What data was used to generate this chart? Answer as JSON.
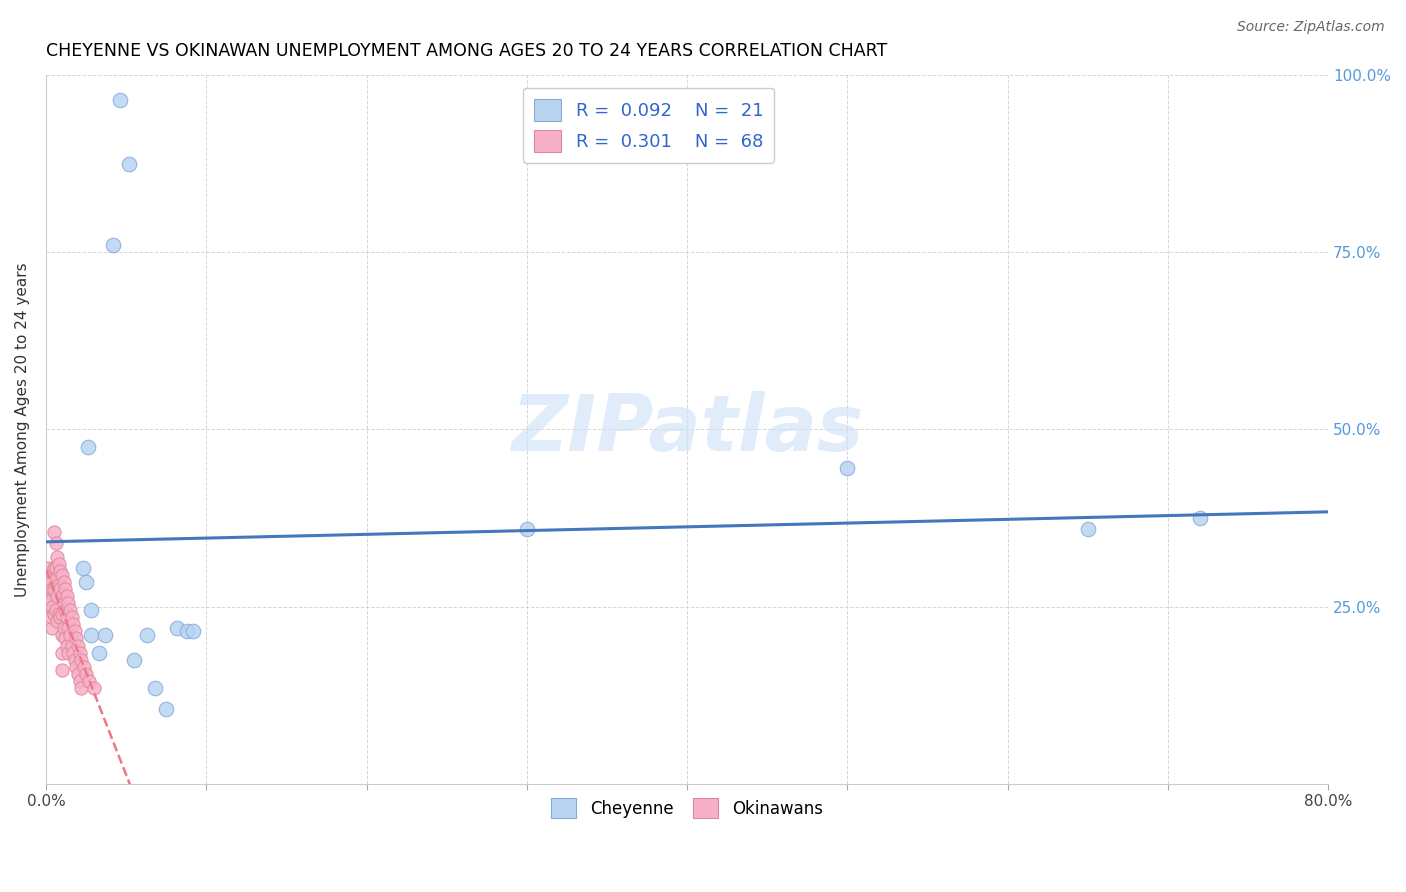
{
  "title": "CHEYENNE VS OKINAWAN UNEMPLOYMENT AMONG AGES 20 TO 24 YEARS CORRELATION CHART",
  "source": "Source: ZipAtlas.com",
  "ylabel": "Unemployment Among Ages 20 to 24 years",
  "xlim": [
    0.0,
    0.8
  ],
  "ylim": [
    0.0,
    1.0
  ],
  "xtick_positions": [
    0.0,
    0.1,
    0.2,
    0.3,
    0.4,
    0.5,
    0.6,
    0.7,
    0.8
  ],
  "ytick_positions": [
    0.0,
    0.25,
    0.5,
    0.75,
    1.0
  ],
  "xtick_labels": [
    "0.0%",
    "",
    "",
    "",
    "",
    "",
    "",
    "",
    "80.0%"
  ],
  "ytick_labels_right": [
    "",
    "25.0%",
    "50.0%",
    "75.0%",
    "100.0%"
  ],
  "cheyenne_color": "#b8d4f0",
  "cheyenne_edge": "#88aadd",
  "okinawan_color": "#f8b0c8",
  "okinawan_edge": "#dd8899",
  "trend_blue": "#4477bb",
  "trend_pink": "#ee7788",
  "legend_R_cheyenne": "0.092",
  "legend_N_cheyenne": "21",
  "legend_R_okinawan": "0.301",
  "legend_N_okinawan": "68",
  "cheyenne_x": [
    0.023,
    0.025,
    0.026,
    0.028,
    0.028,
    0.033,
    0.037,
    0.042,
    0.046,
    0.052,
    0.055,
    0.063,
    0.068,
    0.075,
    0.082,
    0.088,
    0.092,
    0.3,
    0.5,
    0.65,
    0.72
  ],
  "cheyenne_y": [
    0.305,
    0.285,
    0.475,
    0.21,
    0.245,
    0.185,
    0.21,
    0.76,
    0.965,
    0.875,
    0.175,
    0.21,
    0.135,
    0.105,
    0.22,
    0.215,
    0.215,
    0.36,
    0.445,
    0.36,
    0.375
  ],
  "okinawan_x": [
    0.001,
    0.001,
    0.001,
    0.002,
    0.002,
    0.002,
    0.003,
    0.003,
    0.003,
    0.004,
    0.004,
    0.004,
    0.005,
    0.005,
    0.005,
    0.005,
    0.006,
    0.006,
    0.006,
    0.006,
    0.007,
    0.007,
    0.007,
    0.007,
    0.008,
    0.008,
    0.008,
    0.009,
    0.009,
    0.009,
    0.01,
    0.01,
    0.01,
    0.01,
    0.01,
    0.01,
    0.011,
    0.011,
    0.011,
    0.012,
    0.012,
    0.012,
    0.013,
    0.013,
    0.013,
    0.014,
    0.014,
    0.014,
    0.015,
    0.015,
    0.016,
    0.016,
    0.017,
    0.017,
    0.018,
    0.018,
    0.019,
    0.019,
    0.02,
    0.02,
    0.021,
    0.021,
    0.022,
    0.022,
    0.024,
    0.025,
    0.027,
    0.03
  ],
  "okinawan_y": [
    0.305,
    0.285,
    0.255,
    0.295,
    0.27,
    0.245,
    0.285,
    0.26,
    0.235,
    0.275,
    0.25,
    0.22,
    0.355,
    0.305,
    0.275,
    0.24,
    0.34,
    0.305,
    0.28,
    0.245,
    0.32,
    0.29,
    0.265,
    0.23,
    0.31,
    0.28,
    0.24,
    0.3,
    0.275,
    0.235,
    0.295,
    0.265,
    0.24,
    0.21,
    0.185,
    0.16,
    0.285,
    0.255,
    0.22,
    0.275,
    0.245,
    0.205,
    0.265,
    0.235,
    0.195,
    0.255,
    0.22,
    0.185,
    0.245,
    0.21,
    0.235,
    0.195,
    0.225,
    0.185,
    0.215,
    0.175,
    0.205,
    0.165,
    0.195,
    0.155,
    0.185,
    0.145,
    0.175,
    0.135,
    0.165,
    0.155,
    0.145,
    0.135
  ]
}
